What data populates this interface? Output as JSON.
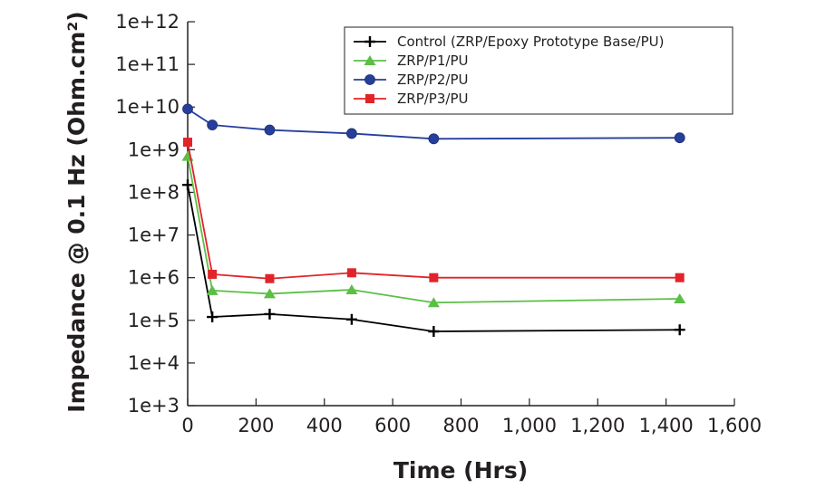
{
  "chart_data": {
    "type": "line",
    "xlabel": "Time (Hrs)",
    "ylabel": "Impedance @ 0.1 Hz (Ohm.cm²)",
    "xlim": [
      0,
      1600
    ],
    "x_ticks": [
      0,
      200,
      400,
      600,
      800,
      1000,
      1200,
      1400,
      1600
    ],
    "x_tick_labels": [
      "0",
      "200",
      "400",
      "600",
      "800",
      "1,000",
      "1,200",
      "1,400",
      "1,600"
    ],
    "y_scale": "log",
    "ylim": [
      1000,
      1000000000000
    ],
    "y_ticks": [
      1000,
      10000,
      100000,
      1000000,
      10000000,
      100000000,
      1000000000,
      10000000000,
      100000000000,
      1000000000000
    ],
    "y_tick_labels": [
      "1e+3",
      "1e+4",
      "1e+5",
      "1e+6",
      "1e+7",
      "1e+8",
      "1e+9",
      "1e+10",
      "1e+11",
      "1e+12"
    ],
    "grid": false,
    "legend_position": "top-right",
    "series": [
      {
        "name": "Control (ZRP/Epoxy Prototype Base/PU)",
        "color": "#000000",
        "marker": "plus",
        "x": [
          0,
          72,
          240,
          480,
          720,
          1440
        ],
        "y": [
          150000000,
          120000,
          140000,
          105000,
          55000,
          60000
        ]
      },
      {
        "name": "ZRP/P1/PU",
        "color": "#5cbf45",
        "marker": "triangle",
        "x": [
          0,
          72,
          240,
          480,
          720,
          1440
        ],
        "y": [
          700000000,
          500000,
          420000,
          520000,
          260000,
          320000
        ]
      },
      {
        "name": "ZRP/P2/PU",
        "color": "#253f9b",
        "marker": "circle",
        "x": [
          0,
          72,
          240,
          480,
          720,
          1440
        ],
        "y": [
          9000000000,
          3800000000,
          2900000000,
          2400000000,
          1800000000,
          1900000000
        ]
      },
      {
        "name": "ZRP/P3/PU",
        "color": "#e0242a",
        "marker": "square",
        "x": [
          0,
          72,
          240,
          480,
          720,
          1440
        ],
        "y": [
          1500000000,
          1200000,
          950000,
          1300000,
          1000000,
          1000000
        ]
      }
    ]
  }
}
